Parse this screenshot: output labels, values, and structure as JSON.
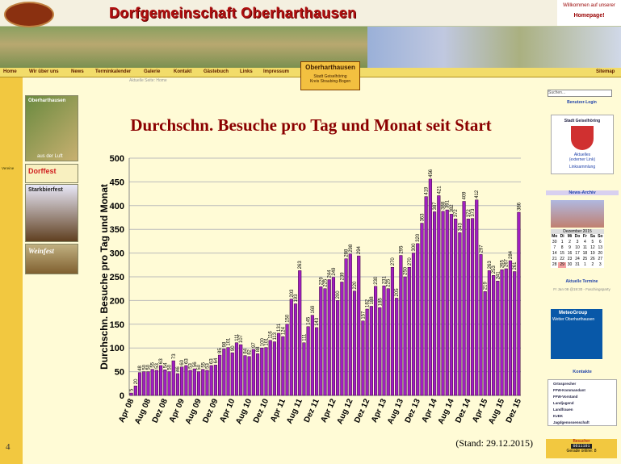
{
  "header": {
    "title": "Dorfgemeinschaft Oberharthausen",
    "welcome": "Willkommen auf unserer",
    "welcome2": "Homepage!",
    "place": "Oberharthausen",
    "place2": "Stadt Geiselhöring",
    "place3": "Kreis Straubing-Bogen",
    "current": "Aktuelle Seite: Home"
  },
  "nav": [
    "Home",
    "Wir über uns",
    "News",
    "Terminkalender",
    "Galerie",
    "Kontakt",
    "Gästebuch",
    "Links",
    "Impressum"
  ],
  "sitemap": "Sitemap",
  "left": {
    "aerial": "Oberharthausen",
    "aerial2": "aus der Luft",
    "clubs": "Vereine",
    "fest1": "Dorffest",
    "fest2": "Starkbierfest",
    "fest3": "Weinfest"
  },
  "right": {
    "search": "Suchen...",
    "login": "Benutzer-Login",
    "city": "Stadt Geiselhöring",
    "news": "Aktuelles",
    "external": "(externer Link)",
    "links": "Linksammlung",
    "archive": "News-Archiv",
    "month": "Dezember 2015",
    "weekdays": [
      "Mo",
      "Di",
      "Mi",
      "Do",
      "Fr",
      "Sa",
      "So"
    ],
    "weeks": [
      [
        30,
        1,
        2,
        3,
        4,
        5,
        6
      ],
      [
        7,
        8,
        9,
        10,
        11,
        12,
        13
      ],
      [
        14,
        15,
        16,
        17,
        18,
        19,
        20
      ],
      [
        21,
        22,
        23,
        24,
        25,
        26,
        27
      ],
      [
        28,
        29,
        30,
        31,
        1,
        2,
        3
      ]
    ],
    "events": "Aktuelle Termine",
    "event": "Fr Jan 08 @19:30 - Faschingsparty",
    "meteo": "MeteoGroup",
    "weather": "Wetter Oberharthausen",
    "contacts": "Kontakte",
    "contact_list": [
      "Ortssprecher",
      "FFW-Kommandant",
      "FFW-Vorstand",
      "Landjugend",
      "Landfrauen",
      "KvEK",
      "Jagdgenossenschaft"
    ],
    "visitors": "Besucher",
    "counter": "0611191",
    "online": "Gerade online: 8"
  },
  "page_number": "4",
  "chart_data": {
    "type": "bar",
    "title": "Durchschn. Besuche pro Tag und Monat seit Start",
    "ylabel": "Durchschn. Besuche pro Tag und Monat",
    "note": "(Stand: 29.12.2015)",
    "color": "#a020c0",
    "ylim": [
      0,
      500
    ],
    "yticks": [
      0,
      50,
      100,
      150,
      200,
      250,
      300,
      350,
      400,
      450,
      500
    ],
    "grid": true,
    "categories": [
      "Apr 08",
      null,
      null,
      null,
      "Aug 08",
      null,
      null,
      null,
      "Dez 08",
      null,
      null,
      null,
      "Apr 09",
      null,
      null,
      null,
      "Aug 09",
      null,
      null,
      null,
      "Dez 09",
      null,
      null,
      null,
      "Apr 10",
      null,
      null,
      null,
      "Aug 10",
      null,
      null,
      null,
      "Dez 10",
      null,
      null,
      null,
      "Apr 11",
      null,
      null,
      null,
      "Aug 11",
      null,
      null,
      null,
      "Dez 11",
      null,
      null,
      null,
      "Apr 12",
      null,
      null,
      null,
      "Aug 12",
      null,
      null,
      null,
      "Dez 12",
      null,
      null,
      null,
      "Apr 13",
      null,
      null,
      null,
      "Aug 13",
      null,
      null,
      null,
      "Dez 13",
      null,
      null,
      null,
      "Apr 14",
      null,
      null,
      null,
      "Aug 14",
      null,
      null,
      null,
      "Dez 14",
      null,
      null,
      null,
      "Apr 15",
      null,
      null,
      null,
      "Aug 15",
      null,
      null,
      null,
      "Dez 15"
    ],
    "values": [
      5,
      20,
      48,
      50,
      50,
      55,
      53,
      63,
      54,
      50,
      73,
      46,
      60,
      63,
      53,
      56,
      50,
      55,
      53,
      63,
      64,
      85,
      98,
      101,
      90,
      111,
      107,
      84,
      82,
      97,
      88,
      100,
      101,
      116,
      113,
      131,
      124,
      150,
      203,
      193,
      263,
      111,
      145,
      169,
      143,
      229,
      225,
      244,
      249,
      200,
      239,
      288,
      298,
      220,
      294,
      157,
      182,
      188,
      230,
      185,
      231,
      225,
      270,
      205,
      295,
      250,
      270,
      300,
      320,
      363,
      419,
      456,
      387,
      421,
      388,
      391,
      382,
      372,
      343,
      409,
      372,
      373,
      412,
      297,
      219,
      263,
      253,
      241,
      265,
      267,
      284,
      261,
      386
    ]
  }
}
